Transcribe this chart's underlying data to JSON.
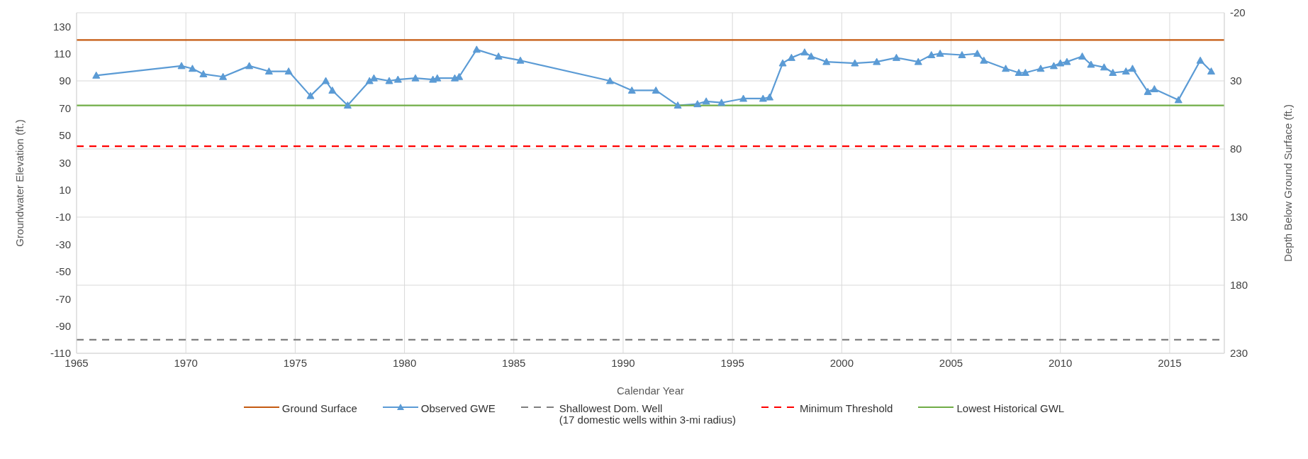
{
  "chart_data": {
    "type": "line",
    "xlabel": "Calendar Year",
    "ylabel": "Groundwater Elevation (ft.)",
    "y2label": "Depth Below Ground Surface  (ft.)",
    "xlim": [
      1965,
      2017.5
    ],
    "xticks": [
      1965,
      1970,
      1975,
      1980,
      1985,
      1990,
      1995,
      2000,
      2005,
      2010,
      2015
    ],
    "ylim": [
      -110,
      140
    ],
    "yticks": [
      -110,
      -90,
      -70,
      -50,
      -30,
      -10,
      10,
      30,
      50,
      70,
      90,
      110,
      130
    ],
    "y2lim": [
      230,
      -20
    ],
    "y2ticks": [
      -20,
      30,
      80,
      130,
      180,
      230
    ],
    "grid": true,
    "legend": "bottom",
    "series": [
      {
        "name": "Ground Surface",
        "color": "#c55a11",
        "marker": "none",
        "line_style": "solid",
        "x": [
          1965,
          2017.5
        ],
        "values": [
          120,
          120
        ]
      },
      {
        "name": "Observed GWE",
        "color": "#5b9bd5",
        "marker": "triangle",
        "line_style": "solid",
        "x": [
          1965.9,
          1969.8,
          1970.3,
          1970.8,
          1971.7,
          1972.9,
          1973.8,
          1974.7,
          1975.7,
          1976.4,
          1976.7,
          1977.4,
          1978.4,
          1978.6,
          1979.3,
          1979.7,
          1980.5,
          1981.3,
          1981.5,
          1982.3,
          1982.5,
          1983.3,
          1984.3,
          1985.3,
          1989.4,
          1990.4,
          1991.5,
          1992.5,
          1993.4,
          1993.8,
          1994.5,
          1995.5,
          1996.4,
          1996.7,
          1997.3,
          1997.7,
          1998.3,
          1998.6,
          1999.3,
          2000.6,
          2001.6,
          2002.5,
          2003.5,
          2004.1,
          2004.5,
          2005.5,
          2006.2,
          2006.5,
          2007.5,
          2008.1,
          2008.4,
          2009.1,
          2009.7,
          2010.0,
          2010.3,
          2011.0,
          2011.4,
          2012.0,
          2012.4,
          2013.0,
          2013.3,
          2014.0,
          2014.3,
          2015.4,
          2016.4,
          2016.9
        ],
        "values": [
          94,
          101,
          99,
          95,
          93,
          101,
          97,
          97,
          79,
          90,
          83,
          72,
          90,
          92,
          90,
          91,
          92,
          91,
          92,
          92,
          93,
          113,
          108,
          105,
          90,
          83,
          83,
          72,
          73,
          75,
          74,
          77,
          77,
          78,
          103,
          107,
          111,
          108,
          104,
          103,
          104,
          107,
          104,
          109,
          110,
          109,
          110,
          105,
          99,
          96,
          96,
          99,
          101,
          103,
          104,
          108,
          102,
          100,
          96,
          97,
          99,
          82,
          84,
          76,
          105,
          97
        ]
      },
      {
        "name": "Shallowest Dom. Well\n(17 domestic wells within 3-mi radius)",
        "color": "#7f7f7f",
        "marker": "none",
        "line_style": "dashed",
        "x": [
          1965,
          2017.5
        ],
        "values": [
          -100,
          -100
        ]
      },
      {
        "name": "Minimum Threshold",
        "color": "#ff0000",
        "marker": "none",
        "line_style": "dashed",
        "x": [
          1965,
          2017.5
        ],
        "values": [
          42,
          42
        ]
      },
      {
        "name": "Lowest Historical GWL",
        "color": "#70ad47",
        "marker": "none",
        "line_style": "solid",
        "x": [
          1965,
          2017.5
        ],
        "values": [
          72,
          72
        ]
      }
    ]
  }
}
